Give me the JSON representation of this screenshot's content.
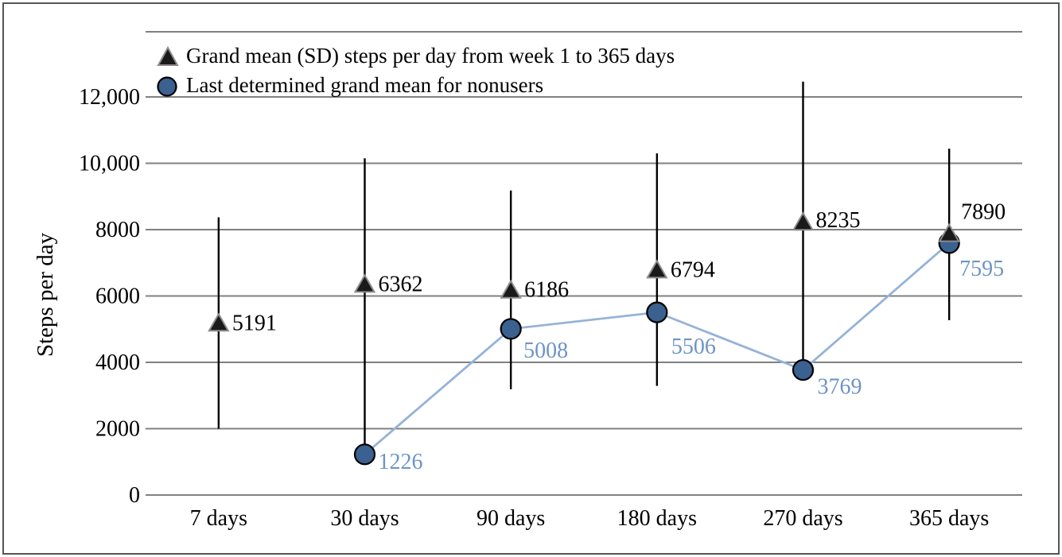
{
  "figure": {
    "background": "#ffffff",
    "border_color": "#555555",
    "gridline_color": "#808080"
  },
  "chart_data": {
    "type": "line",
    "title": "",
    "xlabel": "",
    "ylabel": "Steps per day",
    "ylim": [
      0,
      12000
    ],
    "grid": "horizontal",
    "legend_position": "top-left",
    "categories": [
      "7 days",
      "30 days",
      "90 days",
      "180 days",
      "270 days",
      "365 days"
    ],
    "y_ticks": [
      {
        "value": 0,
        "label": "0"
      },
      {
        "value": 2000,
        "label": "2000"
      },
      {
        "value": 4000,
        "label": "4000"
      },
      {
        "value": 6000,
        "label": "6000"
      },
      {
        "value": 8000,
        "label": "8000"
      },
      {
        "value": 10000,
        "label": "10,000"
      },
      {
        "value": 12000,
        "label": "12,000"
      }
    ],
    "series": [
      {
        "name": "Grand mean (SD) steps per day from week 1 to 365 days",
        "marker": "triangle",
        "color": "#1a1a1a",
        "marker_stroke": "#8c8c8c",
        "error_bar_color": "#000000",
        "values": [
          5191,
          6362,
          6186,
          6794,
          8235,
          7890
        ],
        "data_labels": [
          "5191",
          "6362",
          "6186",
          "6794",
          "8235",
          "7890"
        ],
        "error_bar_low": [
          2000,
          1226,
          3190,
          3290,
          3780,
          5270
        ],
        "error_bar_high": [
          8370,
          10150,
          9180,
          10300,
          12460,
          10440
        ]
      },
      {
        "name": "Last determined grand mean for nonusers",
        "marker": "circle",
        "color": "#3a6190",
        "marker_stroke": "#000000",
        "line_color": "#95b3d7",
        "label_color": "#6d94c5",
        "values": [
          null,
          1226,
          5008,
          5506,
          3769,
          7595
        ],
        "data_labels": [
          "",
          "1226",
          "5008",
          "5506",
          "3769",
          "7595"
        ]
      }
    ]
  }
}
